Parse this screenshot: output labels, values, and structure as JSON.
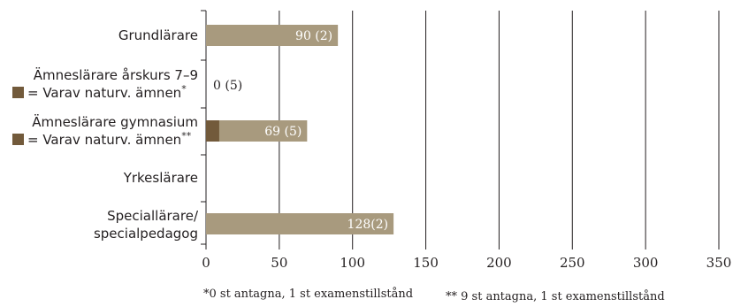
{
  "chart_data": {
    "type": "bar",
    "orientation": "horizontal",
    "title": "",
    "xlabel": "",
    "ylabel": "",
    "xlim": [
      0,
      350
    ],
    "xticks": [
      "0",
      "50",
      "100",
      "150",
      "200",
      "250",
      "300",
      "350"
    ],
    "categories": [
      {
        "lines": [
          "Grundlärare"
        ],
        "sublabel": null
      },
      {
        "lines": [
          "Ämneslärare årskurs 7–9"
        ],
        "sublabel": {
          "text": "= Varav naturv. ämnen",
          "mark": "*"
        }
      },
      {
        "lines": [
          "Ämneslärare gymnasium"
        ],
        "sublabel": {
          "text": "= Varav naturv. ämnen",
          "mark": "**"
        }
      },
      {
        "lines": [
          "Yrkeslärare"
        ],
        "sublabel": null
      },
      {
        "lines": [
          "Speciallärare/",
          "specialpedagog"
        ],
        "sublabel": null
      }
    ],
    "series": [
      {
        "values": [
          90,
          0,
          69,
          0,
          128
        ]
      },
      {
        "values": [
          0,
          0,
          9,
          0,
          0
        ]
      }
    ],
    "data_labels": [
      "90 (2)",
      "0 (5)",
      "69 (5)",
      "",
      "128(2)"
    ],
    "footnotes": [
      "*0 st antagna, 1 st examenstillstånd",
      "** 9 st antagna, 1 st examenstillstånd"
    ],
    "colors": {
      "total": "#a89a7e",
      "naturv": "#725a3b",
      "grid": "#231f20",
      "label_on_bar": "#ffffff",
      "label_off_bar": "#231f20"
    },
    "grid": true,
    "legend": "inline-left"
  }
}
